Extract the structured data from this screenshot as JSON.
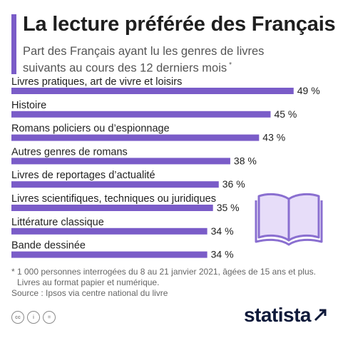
{
  "title": "La lecture préférée des Français",
  "subtitle": "Part des Français ayant lu les genres de livres suivants au cours des 12 derniers mois",
  "subtitle_marker": "*",
  "colors": {
    "bar": "#7a5cc8",
    "accent": "#7a5cc8",
    "book_fill": "#e7ddf9",
    "book_stroke": "#8a6fd0"
  },
  "chart_data": {
    "type": "bar",
    "orientation": "horizontal",
    "categories": [
      "Livres pratiques, art de vivre et loisirs",
      "Histoire",
      "Romans policiers ou d’espionnage",
      "Autres genres de romans",
      "Livres de reportages d’actualité",
      "Livres scientifiques, techniques ou juridiques",
      "Littérature classique",
      "Bande dessinée"
    ],
    "values": [
      49,
      45,
      43,
      38,
      36,
      35,
      34,
      34
    ],
    "value_labels": [
      "49 %",
      "45 %",
      "43 %",
      "38 %",
      "36 %",
      "35 %",
      "34 %",
      "34 %"
    ],
    "unit": "%",
    "xlim": [
      0,
      52
    ],
    "grid": false,
    "legend": "none"
  },
  "footnote": {
    "line1": "* 1 000 personnes interrogées du 8 au 21 janvier 2021, âgées de 15 ans et plus.",
    "line2": "Livres au format papier et numérique.",
    "line3": "Source : Ipsos via centre national du livre"
  },
  "footer": {
    "icons": [
      "cc-icon",
      "attribution-icon",
      "no-derivatives-icon"
    ],
    "cc_labels": [
      "cc",
      "i",
      "="
    ],
    "logo": "statista"
  }
}
